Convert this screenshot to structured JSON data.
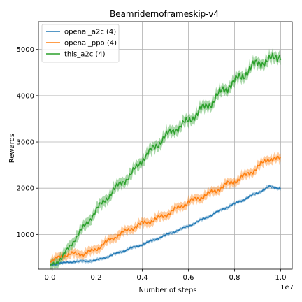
{
  "chart_data": {
    "type": "line",
    "title": "Beamridernoframeskip-v4",
    "xlabel": "Number of steps",
    "ylabel": "Rewards",
    "x_offset_label": "1e7",
    "xlim": [
      -0.05,
      1.05
    ],
    "ylim": [
      250,
      5600
    ],
    "xticks": [
      0.0,
      0.2,
      0.4,
      0.6,
      0.8,
      1.0
    ],
    "xtick_labels": [
      "0.0",
      "0.2",
      "0.4",
      "0.6",
      "0.8",
      "1.0"
    ],
    "yticks": [
      1000,
      2000,
      3000,
      4000,
      5000
    ],
    "ytick_labels": [
      "1000",
      "2000",
      "3000",
      "4000",
      "5000"
    ],
    "grid": true,
    "legend_position": "top-left",
    "series": [
      {
        "name": "openai_a2c (4)",
        "color": "#1f77b4",
        "band": 50,
        "x": [
          0.0,
          0.05,
          0.1,
          0.15,
          0.2,
          0.25,
          0.3,
          0.35,
          0.4,
          0.45,
          0.5,
          0.55,
          0.6,
          0.65,
          0.7,
          0.75,
          0.8,
          0.85,
          0.9,
          0.95,
          1.0
        ],
        "y": [
          340,
          380,
          410,
          420,
          440,
          520,
          610,
          700,
          780,
          880,
          980,
          1080,
          1180,
          1300,
          1420,
          1550,
          1660,
          1780,
          1900,
          2030,
          2000
        ]
      },
      {
        "name": "openai_ppo (4)",
        "color": "#ff7f0e",
        "band": 130,
        "x": [
          0.0,
          0.05,
          0.1,
          0.15,
          0.2,
          0.25,
          0.3,
          0.35,
          0.4,
          0.45,
          0.5,
          0.55,
          0.6,
          0.65,
          0.7,
          0.75,
          0.8,
          0.85,
          0.9,
          0.95,
          1.0
        ],
        "y": [
          400,
          540,
          580,
          580,
          680,
          850,
          1000,
          1120,
          1240,
          1310,
          1420,
          1560,
          1700,
          1800,
          1900,
          2040,
          2150,
          2280,
          2450,
          2650,
          2620
        ]
      },
      {
        "name": "this_a2c (4)",
        "color": "#2ca02c",
        "band": 160,
        "x": [
          0.0,
          0.05,
          0.1,
          0.15,
          0.2,
          0.25,
          0.3,
          0.35,
          0.4,
          0.45,
          0.5,
          0.55,
          0.6,
          0.65,
          0.7,
          0.75,
          0.8,
          0.85,
          0.9,
          0.95,
          1.0
        ],
        "y": [
          330,
          480,
          850,
          1180,
          1520,
          1810,
          2080,
          2280,
          2620,
          2870,
          3120,
          3300,
          3450,
          3680,
          3850,
          4120,
          4300,
          4500,
          4720,
          4750,
          4900
        ]
      }
    ]
  }
}
